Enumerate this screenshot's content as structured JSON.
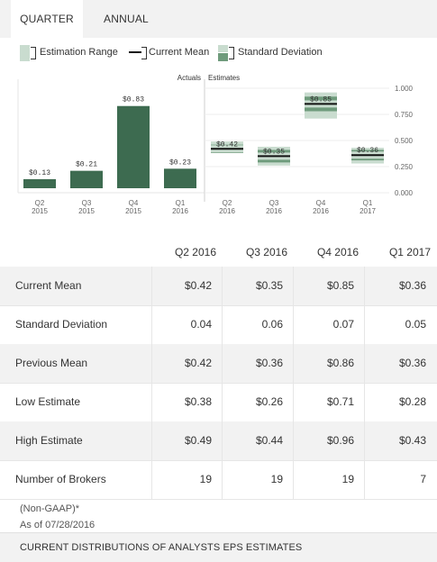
{
  "tabs": [
    {
      "label": "QUARTER",
      "active": true
    },
    {
      "label": "ANNUAL",
      "active": false
    }
  ],
  "legend": {
    "estimation_range": "Estimation Range",
    "current_mean": "Current Mean",
    "standard_deviation": "Standard Deviation"
  },
  "colors": {
    "actual_bar": "#3d6b50",
    "range_fill": "#c9dccf",
    "std_fill": "#6f9b7c",
    "mean_line": "#111111",
    "tab_bg": "#f2f2f2",
    "row_shade": "#f2f2f2"
  },
  "chart_data": {
    "type": "bar",
    "section_labels": {
      "actuals": "Actuals",
      "estimates": "Estimates"
    },
    "y_ticks": [
      "1.000",
      "0.750",
      "0.500",
      "0.250",
      "0.000"
    ],
    "ylim": [
      0,
      1.0
    ],
    "actuals": [
      {
        "quarter": "Q2",
        "year": "2015",
        "value": 0.13,
        "label": "$0.13"
      },
      {
        "quarter": "Q3",
        "year": "2015",
        "value": 0.21,
        "label": "$0.21"
      },
      {
        "quarter": "Q4",
        "year": "2015",
        "value": 0.83,
        "label": "$0.83"
      },
      {
        "quarter": "Q1",
        "year": "2016",
        "value": 0.23,
        "label": "$0.23"
      }
    ],
    "estimates": [
      {
        "quarter": "Q2",
        "year": "2016",
        "mean": 0.42,
        "std": 0.04,
        "low": 0.38,
        "high": 0.49,
        "label": "$0.42"
      },
      {
        "quarter": "Q3",
        "year": "2016",
        "mean": 0.35,
        "std": 0.06,
        "low": 0.26,
        "high": 0.44,
        "label": "$0.35"
      },
      {
        "quarter": "Q4",
        "year": "2016",
        "mean": 0.85,
        "std": 0.07,
        "low": 0.71,
        "high": 0.96,
        "label": "$0.85"
      },
      {
        "quarter": "Q1",
        "year": "2017",
        "mean": 0.36,
        "std": 0.05,
        "low": 0.28,
        "high": 0.43,
        "label": "$0.36"
      }
    ]
  },
  "table": {
    "columns": [
      "Q2 2016",
      "Q3 2016",
      "Q4 2016",
      "Q1 2017"
    ],
    "rows": [
      {
        "label": "Current Mean",
        "values": [
          "$0.42",
          "$0.35",
          "$0.85",
          "$0.36"
        ]
      },
      {
        "label": "Standard Deviation",
        "values": [
          "0.04",
          "0.06",
          "0.07",
          "0.05"
        ]
      },
      {
        "label": "Previous Mean",
        "values": [
          "$0.42",
          "$0.36",
          "$0.86",
          "$0.36"
        ]
      },
      {
        "label": "Low Estimate",
        "values": [
          "$0.38",
          "$0.26",
          "$0.71",
          "$0.28"
        ]
      },
      {
        "label": "High Estimate",
        "values": [
          "$0.49",
          "$0.44",
          "$0.96",
          "$0.43"
        ]
      },
      {
        "label": "Number of Brokers",
        "values": [
          "19",
          "19",
          "19",
          "7"
        ]
      }
    ]
  },
  "footnote": {
    "basis": "(Non-GAAP)*",
    "as_of": "As of 07/28/2016"
  },
  "bottom_bar": {
    "label": "CURRENT DISTRIBUTIONS OF ANALYSTS EPS ESTIMATES"
  }
}
